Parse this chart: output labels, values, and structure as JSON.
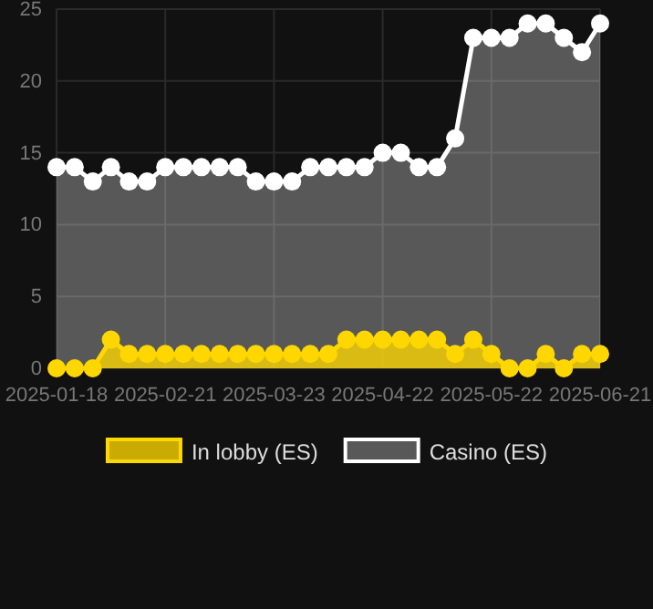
{
  "chart_data": {
    "type": "area",
    "categories": [
      "2025-01-18",
      null,
      null,
      null,
      null,
      null,
      "2025-02-21",
      null,
      null,
      null,
      null,
      null,
      "2025-03-23",
      null,
      null,
      null,
      null,
      null,
      "2025-04-22",
      null,
      null,
      null,
      null,
      null,
      "2025-05-22",
      null,
      null,
      null,
      null,
      null,
      "2025-06-21"
    ],
    "series": [
      {
        "name": "Casino (ES)",
        "color": "#ffffff",
        "values": [
          14,
          14,
          13,
          14,
          13,
          13,
          14,
          14,
          14,
          14,
          14,
          13,
          13,
          13,
          14,
          14,
          14,
          14,
          15,
          15,
          14,
          14,
          16,
          23,
          23,
          23,
          24,
          24,
          23,
          22,
          24
        ]
      },
      {
        "name": "In lobby (ES)",
        "color": "#ffd700",
        "values": [
          0,
          0,
          0,
          2,
          1,
          1,
          1,
          1,
          1,
          1,
          1,
          1,
          1,
          1,
          1,
          1,
          2,
          2,
          2,
          2,
          2,
          2,
          1,
          2,
          1,
          0,
          0,
          1,
          0,
          1,
          1
        ]
      }
    ],
    "ylim": [
      0,
      25
    ],
    "yticks": [
      0,
      5,
      10,
      15,
      20,
      25
    ],
    "grid": true,
    "legend": "bottom",
    "marker": "circle"
  }
}
